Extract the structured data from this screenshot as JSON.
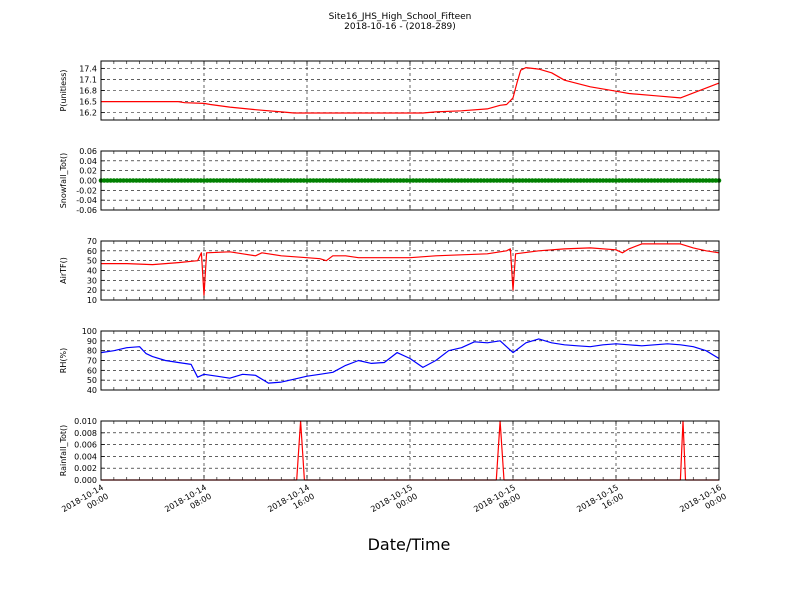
{
  "header": {
    "title": "Site16_JHS_High_School_Fifteen",
    "subtitle": "2018-10-16 - (2018-289)"
  },
  "xlabel": "Date/Time",
  "x_ticks": [
    "2018-10-14 00:00",
    "2018-10-14 08:00",
    "2018-10-14 16:00",
    "2018-10-15 00:00",
    "2018-10-15 08:00",
    "2018-10-15 16:00",
    "2018-10-16 00:00"
  ],
  "chart_data": [
    {
      "type": "line",
      "ylabel": "P(unitless)",
      "color": "#ff0000",
      "ylim": [
        16.0,
        17.6
      ],
      "yticks": [
        16.2,
        16.5,
        16.8,
        17.1,
        17.4
      ],
      "x_hours": [
        0,
        6,
        6.5,
        8,
        8.5,
        10,
        12,
        14,
        15,
        18,
        22,
        25,
        26,
        28,
        30,
        31,
        31.5,
        32,
        32.3,
        32.6,
        33,
        34,
        35,
        36,
        38,
        40,
        41,
        43,
        45,
        48
      ],
      "values": [
        16.5,
        16.5,
        16.47,
        16.45,
        16.42,
        16.35,
        16.28,
        16.22,
        16.19,
        16.19,
        16.19,
        16.19,
        16.22,
        16.25,
        16.3,
        16.4,
        16.42,
        16.6,
        17.0,
        17.35,
        17.42,
        17.38,
        17.28,
        17.08,
        16.9,
        16.78,
        16.72,
        16.66,
        16.6,
        17.0
      ]
    },
    {
      "type": "scatter",
      "ylabel": "Snowfall_Tot()",
      "color": "#008000",
      "ylim": [
        -0.06,
        0.06
      ],
      "yticks": [
        -0.06,
        -0.04,
        -0.02,
        0.0,
        0.02,
        0.04,
        0.06
      ],
      "constant_value": 0.0
    },
    {
      "type": "line",
      "ylabel": "AirTF()",
      "color": "#ff0000",
      "ylim": [
        10,
        70
      ],
      "yticks": [
        10,
        20,
        30,
        40,
        50,
        60,
        70
      ],
      "x_hours": [
        0,
        2,
        4,
        6,
        7.5,
        7.8,
        8.0,
        8.2,
        10,
        11,
        12,
        12.5,
        14,
        16,
        17,
        17.5,
        18,
        19,
        20,
        22,
        24,
        26,
        28,
        30,
        31.5,
        31.8,
        32.0,
        32.2,
        34,
        36,
        38,
        40,
        40.5,
        41,
        42,
        44,
        45,
        46,
        47,
        48
      ],
      "values": [
        47,
        47,
        46,
        48,
        50,
        58,
        15,
        58,
        59,
        57,
        55,
        58,
        55,
        53,
        52,
        50,
        55,
        55,
        53,
        53,
        53,
        55,
        56,
        57,
        60,
        62,
        20,
        57,
        60,
        62,
        63,
        61,
        58,
        62,
        67,
        67,
        67,
        63,
        60,
        58
      ]
    },
    {
      "type": "line",
      "ylabel": "RH(%)",
      "color": "#0000ff",
      "ylim": [
        40,
        100
      ],
      "yticks": [
        40,
        50,
        60,
        70,
        80,
        90,
        100
      ],
      "x_hours": [
        0,
        1,
        2,
        3,
        3.5,
        4,
        5,
        6,
        7,
        7.5,
        8,
        9,
        10,
        11,
        12,
        13,
        14,
        15,
        16,
        17,
        18,
        19,
        20,
        21,
        22,
        23,
        24,
        25,
        26,
        27,
        28,
        29,
        30,
        31,
        32,
        33,
        34,
        35,
        36,
        37,
        38,
        39,
        40,
        41,
        42,
        43,
        44,
        45,
        46,
        47,
        48
      ],
      "values": [
        78,
        80,
        83,
        84,
        77,
        74,
        70,
        68,
        66,
        53,
        56,
        54,
        52,
        56,
        55,
        47,
        48,
        51,
        54,
        56,
        58,
        65,
        70,
        67,
        68,
        78,
        72,
        63,
        70,
        80,
        83,
        89,
        88,
        90,
        78,
        88,
        92,
        88,
        86,
        85,
        84,
        86,
        87,
        86,
        85,
        86,
        87,
        86,
        84,
        80,
        72
      ]
    },
    {
      "type": "line",
      "ylabel": "Rainfall_Tot()",
      "color": "#ff0000",
      "ylim": [
        0.0,
        0.01
      ],
      "yticks": [
        0.0,
        0.002,
        0.004,
        0.006,
        0.008,
        0.01
      ],
      "x_hours": [
        0,
        15.2,
        15.5,
        15.8,
        30.7,
        31.0,
        31.3,
        45.0,
        45.2,
        45.4,
        48
      ],
      "values": [
        0,
        0,
        0.01,
        0,
        0,
        0.01,
        0,
        0,
        0.01,
        0,
        0
      ]
    }
  ]
}
